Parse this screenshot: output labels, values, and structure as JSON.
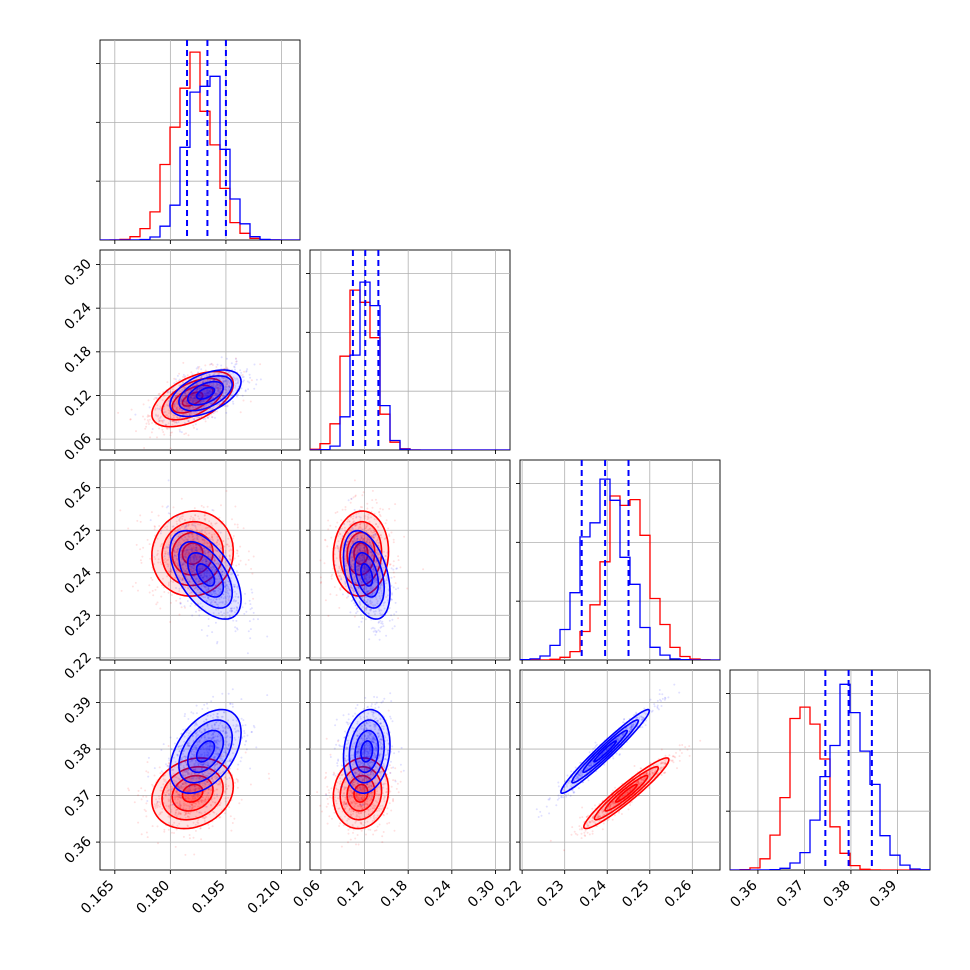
{
  "chart_data": {
    "type": "corner",
    "parameters": [
      {
        "ticks": [
          "0.165",
          "0.180",
          "0.195",
          "0.210"
        ],
        "tick_values": [
          0.165,
          0.18,
          0.195,
          0.21
        ],
        "range": [
          0.161,
          0.215
        ]
      },
      {
        "ticks": [
          "0.06",
          "0.12",
          "0.18",
          "0.24",
          "0.30"
        ],
        "tick_values": [
          0.06,
          0.12,
          0.18,
          0.24,
          0.3
        ],
        "range": [
          0.045,
          0.32
        ]
      },
      {
        "ticks": [
          "0.22",
          "0.23",
          "0.24",
          "0.25",
          "0.26"
        ],
        "tick_values": [
          0.22,
          0.23,
          0.24,
          0.25,
          0.26
        ],
        "range": [
          0.2195,
          0.2665
        ]
      },
      {
        "ticks": [
          "0.36",
          "0.37",
          "0.38",
          "0.39"
        ],
        "tick_values": [
          0.36,
          0.37,
          0.38,
          0.39
        ],
        "range": [
          0.354,
          0.397
        ]
      }
    ],
    "grid": true,
    "series": [
      {
        "color": "#ff0000",
        "means": [
          0.186,
          0.115,
          0.2445,
          0.3705
        ],
        "sigmas": [
          0.0055,
          0.019,
          0.005,
          0.0038
        ],
        "correlations": [
          [
            0,
            1,
            0.55
          ],
          [
            0,
            2,
            0.05
          ],
          [
            0,
            3,
            0.2
          ],
          [
            1,
            2,
            0.05
          ],
          [
            1,
            3,
            0.1
          ],
          [
            2,
            3,
            0.95
          ]
        ]
      },
      {
        "color": "#0000ff",
        "means": [
          0.1895,
          0.123,
          0.2395,
          0.3795
        ],
        "sigmas": [
          0.0048,
          0.016,
          0.0052,
          0.0045
        ],
        "quantiles": [
          [
            0.1845,
            0.19,
            0.195
          ],
          [
            0.104,
            0.121,
            0.139
          ],
          [
            0.234,
            0.2395,
            0.245
          ],
          [
            0.3745,
            0.3795,
            0.3845
          ]
        ],
        "correlations": [
          [
            0,
            1,
            0.5
          ],
          [
            0,
            2,
            -0.55
          ],
          [
            0,
            3,
            0.45
          ],
          [
            1,
            2,
            -0.4
          ],
          [
            1,
            3,
            0.15
          ],
          [
            2,
            3,
            0.97
          ]
        ]
      }
    ],
    "quantile_line_style": "dashed"
  }
}
